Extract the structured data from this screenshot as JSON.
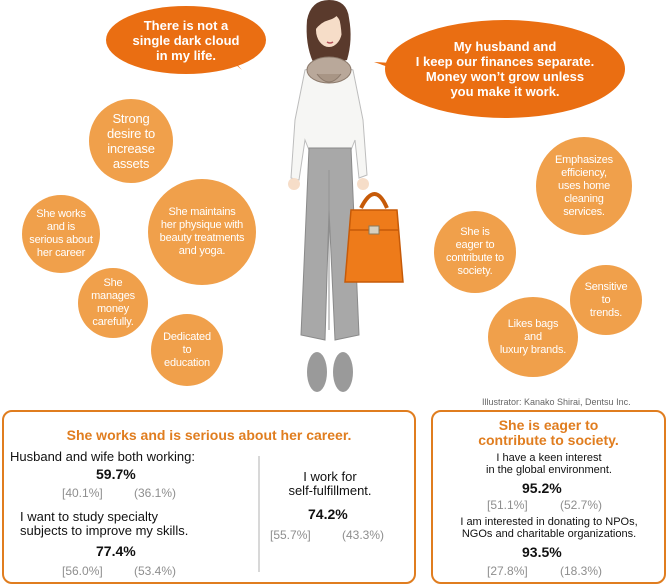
{
  "speech_bubbles": {
    "left": "There is not a\nsingle dark cloud\nin my life.",
    "right": "My husband and\nI keep our finances separate.\nMoney won’t grow unless\nyou make it work."
  },
  "trait_circles": [
    "Strong\ndesire to\nincrease\nassets",
    "She works\nand is\nserious about\nher career",
    "She maintains\nher physique with\nbeauty treatments\nand yoga.",
    "She\nmanages\nmoney\ncarefully.",
    "Dedicated\nto\neducation",
    "Emphasizes\nefficiency,\nuses home\ncleaning\nservices.",
    "She is\neager to\ncontribute to\nsociety.",
    "Sensitive\nto\ntrends.",
    "Likes bags\nand\nluxury brands."
  ],
  "credit": "Illustrator: Kanako Shirai, Dentsu Inc.",
  "career_panel": {
    "title": "She works and is serious about her career.",
    "stat1": {
      "label": "Husband and wife both working:",
      "value": "59.7%",
      "sub_a": "[40.1%]",
      "sub_b": "(36.1%)"
    },
    "stat2": {
      "label": "I want to study specialty\nsubjects to improve my skills.",
      "value": "77.4%",
      "sub_a": "[56.0%]",
      "sub_b": "(53.4%)"
    },
    "stat3": {
      "label": "I work for\nself-fulfillment.",
      "value": "74.2%",
      "sub_a": "[55.7%]",
      "sub_b": "(43.3%)"
    }
  },
  "society_panel": {
    "title": "She is eager to\ncontribute to society.",
    "stat1": {
      "label": "I have a keen interest\nin the global environment.",
      "value": "95.2%",
      "sub_a": "[51.1%]",
      "sub_b": "(52.7%)"
    },
    "stat2": {
      "label": "I am interested in donating to NPOs,\nNGOs and charitable organizations.",
      "value": "93.5%",
      "sub_a": "[27.8%]",
      "sub_b": "(18.3%)"
    }
  },
  "colors": {
    "accent": "#ea6e12",
    "circle": "#f0a04b",
    "border": "#e07d1f",
    "muted": "#8e8e8e"
  }
}
